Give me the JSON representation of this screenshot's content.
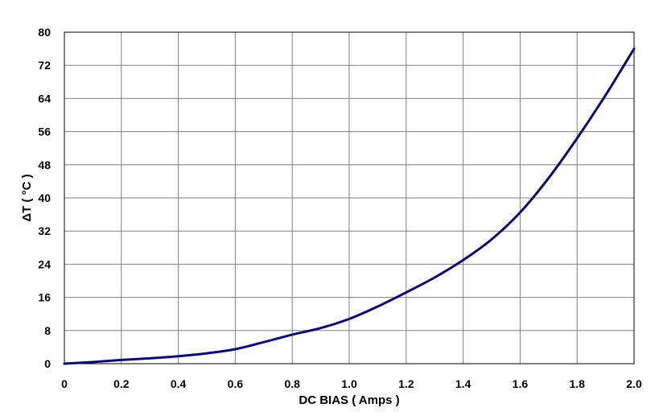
{
  "chart_data": {
    "type": "line",
    "xlabel": "DC BIAS ( Amps )",
    "ylabel": "ΔT ( °C )",
    "xlim": [
      0,
      2.0
    ],
    "ylim": [
      0,
      80
    ],
    "x_ticks": [
      "0",
      "0.2",
      "0.4",
      "0.6",
      "0.8",
      "1.0",
      "1.2",
      "1.4",
      "1.6",
      "1.8",
      "2.0"
    ],
    "y_ticks": [
      "0",
      "8",
      "16",
      "24",
      "32",
      "40",
      "48",
      "56",
      "64",
      "72",
      "80"
    ],
    "grid": true,
    "series": [
      {
        "color": "#0a0a6e",
        "x": [
          0,
          0.1,
          0.2,
          0.3,
          0.4,
          0.5,
          0.6,
          0.7,
          0.8,
          0.9,
          1.0,
          1.1,
          1.2,
          1.3,
          1.4,
          1.5,
          1.6,
          1.7,
          1.8,
          1.9,
          2.0
        ],
        "y": [
          0,
          0.4,
          0.9,
          1.3,
          1.8,
          2.5,
          3.5,
          5.2,
          7.0,
          8.6,
          10.8,
          13.8,
          17.2,
          20.8,
          25.0,
          30.0,
          36.5,
          44.8,
          54.4,
          64.8,
          76.0
        ]
      }
    ]
  }
}
